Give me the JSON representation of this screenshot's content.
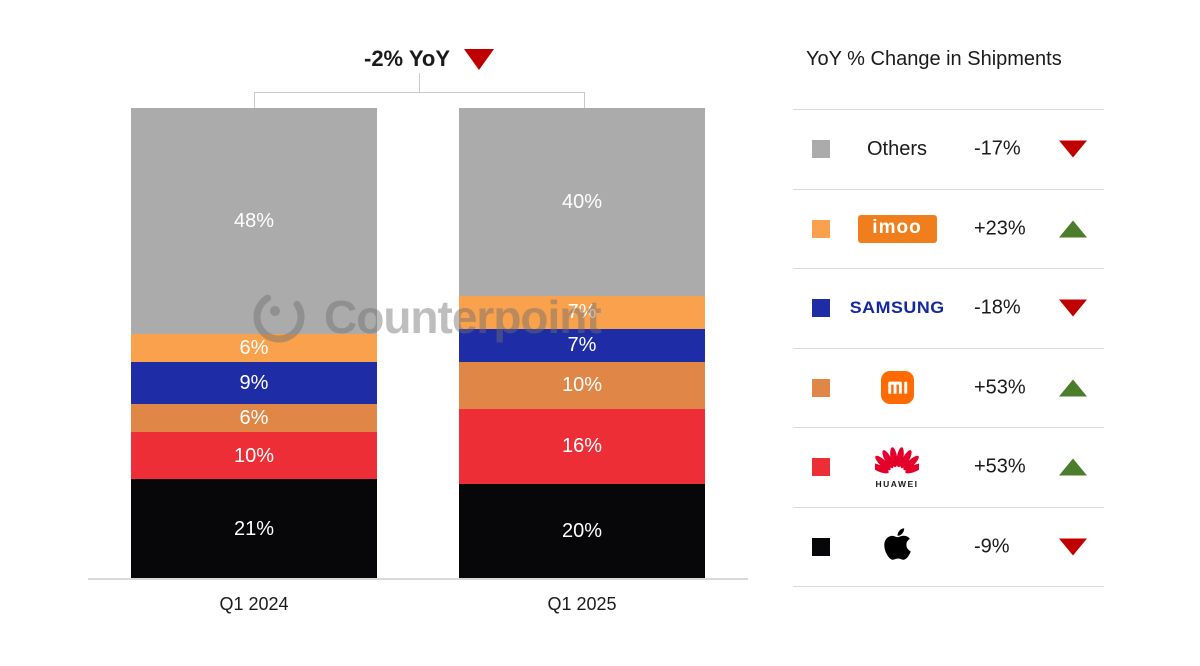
{
  "header": {
    "yoy_label": "-2% YoY",
    "yoy_direction": "down"
  },
  "watermark": {
    "text": "Counterpoint"
  },
  "chart_data": {
    "type": "stacked-bar",
    "unit": "%",
    "title": "-2% YoY",
    "categories": [
      "Q1 2024",
      "Q1 2025"
    ],
    "stack_order": "top-to-bottom",
    "series": [
      {
        "name": "Others",
        "color": "#ABABAB",
        "values": [
          48,
          40
        ]
      },
      {
        "name": "imoo",
        "color": "#F9A14D",
        "values": [
          6,
          7
        ]
      },
      {
        "name": "Samsung",
        "color": "#1E2DA6",
        "values": [
          9,
          7
        ]
      },
      {
        "name": "Xiaomi",
        "color": "#E08747",
        "values": [
          6,
          10
        ]
      },
      {
        "name": "Huawei",
        "color": "#EE2E36",
        "values": [
          10,
          16
        ]
      },
      {
        "name": "Apple",
        "color": "#070709",
        "values": [
          21,
          20
        ]
      }
    ],
    "total_yoy_change": "-2%"
  },
  "legend": {
    "title": "YoY % Change in Shipments",
    "rows": [
      {
        "brand": "Others",
        "display": "text",
        "change": "-17%",
        "direction": "down"
      },
      {
        "brand": "imoo",
        "display": "imoo-logo",
        "change": "+23%",
        "direction": "up"
      },
      {
        "brand": "Samsung",
        "display": "samsung-logo",
        "change": "-18%",
        "direction": "down"
      },
      {
        "brand": "Xiaomi",
        "display": "mi-logo",
        "change": "+53%",
        "direction": "up"
      },
      {
        "brand": "Huawei",
        "display": "huawei-logo",
        "change": "+53%",
        "direction": "up"
      },
      {
        "brand": "Apple",
        "display": "apple-logo",
        "change": "-9%",
        "direction": "down"
      }
    ],
    "arrow_colors": {
      "up": "#4C7D2B",
      "down": "#C00000"
    },
    "brand_colors": {
      "imoo_badge": "#F07E1C",
      "mi_badge": "#FF6B00",
      "samsung_text": "#1428A0",
      "huawei_red": "#E4002B"
    },
    "logo_texts": {
      "imoo": "imoo",
      "mi": "mi",
      "samsung": "SAMSUNG",
      "huawei": "HUAWEI"
    }
  }
}
